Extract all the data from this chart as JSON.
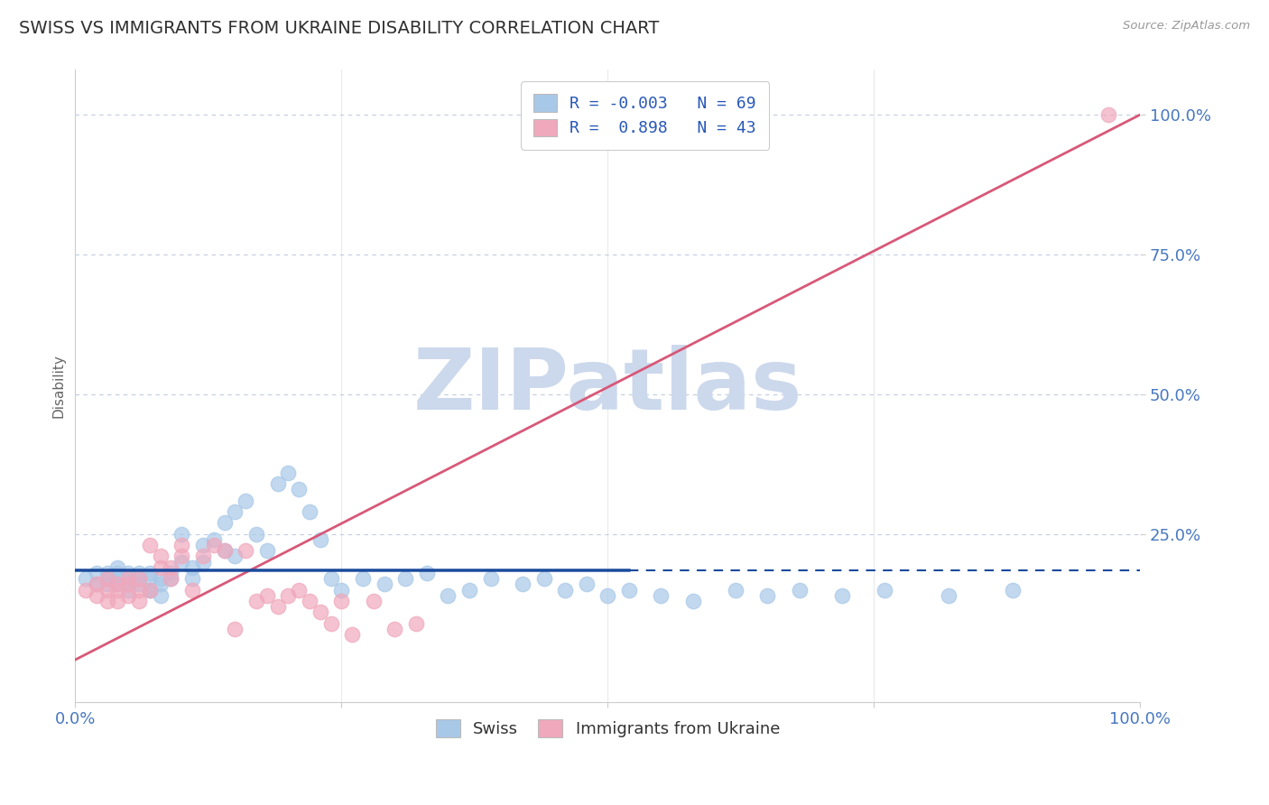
{
  "title": "SWISS VS IMMIGRANTS FROM UKRAINE DISABILITY CORRELATION CHART",
  "source_text": "Source: ZipAtlas.com",
  "ylabel": "Disability",
  "xlim": [
    0.0,
    1.0
  ],
  "ylim": [
    -0.05,
    1.08
  ],
  "ytick_labels": [
    "25.0%",
    "50.0%",
    "75.0%",
    "100.0%"
  ],
  "ytick_vals": [
    0.25,
    0.5,
    0.75,
    1.0
  ],
  "swiss_color": "#a8c8e8",
  "ukraine_color": "#f0a8bc",
  "swiss_line_color": "#1a4a9c",
  "ukraine_line_color": "#d85878",
  "swiss_R": -0.003,
  "swiss_N": 69,
  "ukraine_R": 0.898,
  "ukraine_N": 43,
  "legend_R_color": "#2858b8",
  "watermark_color": "#ccd8ec",
  "watermark_text": "ZIPatlas",
  "background_color": "#ffffff",
  "title_color": "#303030",
  "axis_label_color": "#4878c0",
  "grid_color": "#c0cce0",
  "swiss_x": [
    0.01,
    0.02,
    0.02,
    0.03,
    0.03,
    0.03,
    0.04,
    0.04,
    0.04,
    0.04,
    0.05,
    0.05,
    0.05,
    0.05,
    0.06,
    0.06,
    0.06,
    0.07,
    0.07,
    0.07,
    0.07,
    0.08,
    0.08,
    0.08,
    0.09,
    0.09,
    0.1,
    0.1,
    0.11,
    0.11,
    0.12,
    0.12,
    0.13,
    0.14,
    0.14,
    0.15,
    0.15,
    0.16,
    0.17,
    0.18,
    0.19,
    0.2,
    0.21,
    0.22,
    0.23,
    0.24,
    0.25,
    0.27,
    0.29,
    0.31,
    0.33,
    0.35,
    0.37,
    0.39,
    0.42,
    0.44,
    0.46,
    0.48,
    0.5,
    0.52,
    0.55,
    0.58,
    0.62,
    0.65,
    0.68,
    0.72,
    0.76,
    0.82,
    0.88
  ],
  "swiss_y": [
    0.17,
    0.16,
    0.18,
    0.16,
    0.17,
    0.18,
    0.16,
    0.17,
    0.18,
    0.19,
    0.17,
    0.16,
    0.18,
    0.15,
    0.17,
    0.16,
    0.18,
    0.17,
    0.15,
    0.18,
    0.15,
    0.17,
    0.16,
    0.14,
    0.17,
    0.18,
    0.2,
    0.25,
    0.17,
    0.19,
    0.2,
    0.23,
    0.24,
    0.22,
    0.27,
    0.21,
    0.29,
    0.31,
    0.25,
    0.22,
    0.34,
    0.36,
    0.33,
    0.29,
    0.24,
    0.17,
    0.15,
    0.17,
    0.16,
    0.17,
    0.18,
    0.14,
    0.15,
    0.17,
    0.16,
    0.17,
    0.15,
    0.16,
    0.14,
    0.15,
    0.14,
    0.13,
    0.15,
    0.14,
    0.15,
    0.14,
    0.15,
    0.14,
    0.15
  ],
  "ukraine_x": [
    0.01,
    0.02,
    0.02,
    0.03,
    0.03,
    0.03,
    0.04,
    0.04,
    0.04,
    0.05,
    0.05,
    0.05,
    0.06,
    0.06,
    0.06,
    0.07,
    0.07,
    0.08,
    0.08,
    0.09,
    0.09,
    0.1,
    0.1,
    0.11,
    0.12,
    0.13,
    0.14,
    0.15,
    0.16,
    0.17,
    0.18,
    0.19,
    0.2,
    0.21,
    0.22,
    0.23,
    0.24,
    0.25,
    0.26,
    0.28,
    0.3,
    0.32,
    0.97
  ],
  "ukraine_y": [
    0.15,
    0.14,
    0.16,
    0.13,
    0.15,
    0.17,
    0.13,
    0.15,
    0.16,
    0.14,
    0.16,
    0.17,
    0.15,
    0.13,
    0.17,
    0.15,
    0.23,
    0.19,
    0.21,
    0.17,
    0.19,
    0.21,
    0.23,
    0.15,
    0.21,
    0.23,
    0.22,
    0.08,
    0.22,
    0.13,
    0.14,
    0.12,
    0.14,
    0.15,
    0.13,
    0.11,
    0.09,
    0.13,
    0.07,
    0.13,
    0.08,
    0.09,
    1.0
  ],
  "uk_slope": 0.975,
  "uk_intercept": 0.025,
  "swiss_line_y": 0.185
}
